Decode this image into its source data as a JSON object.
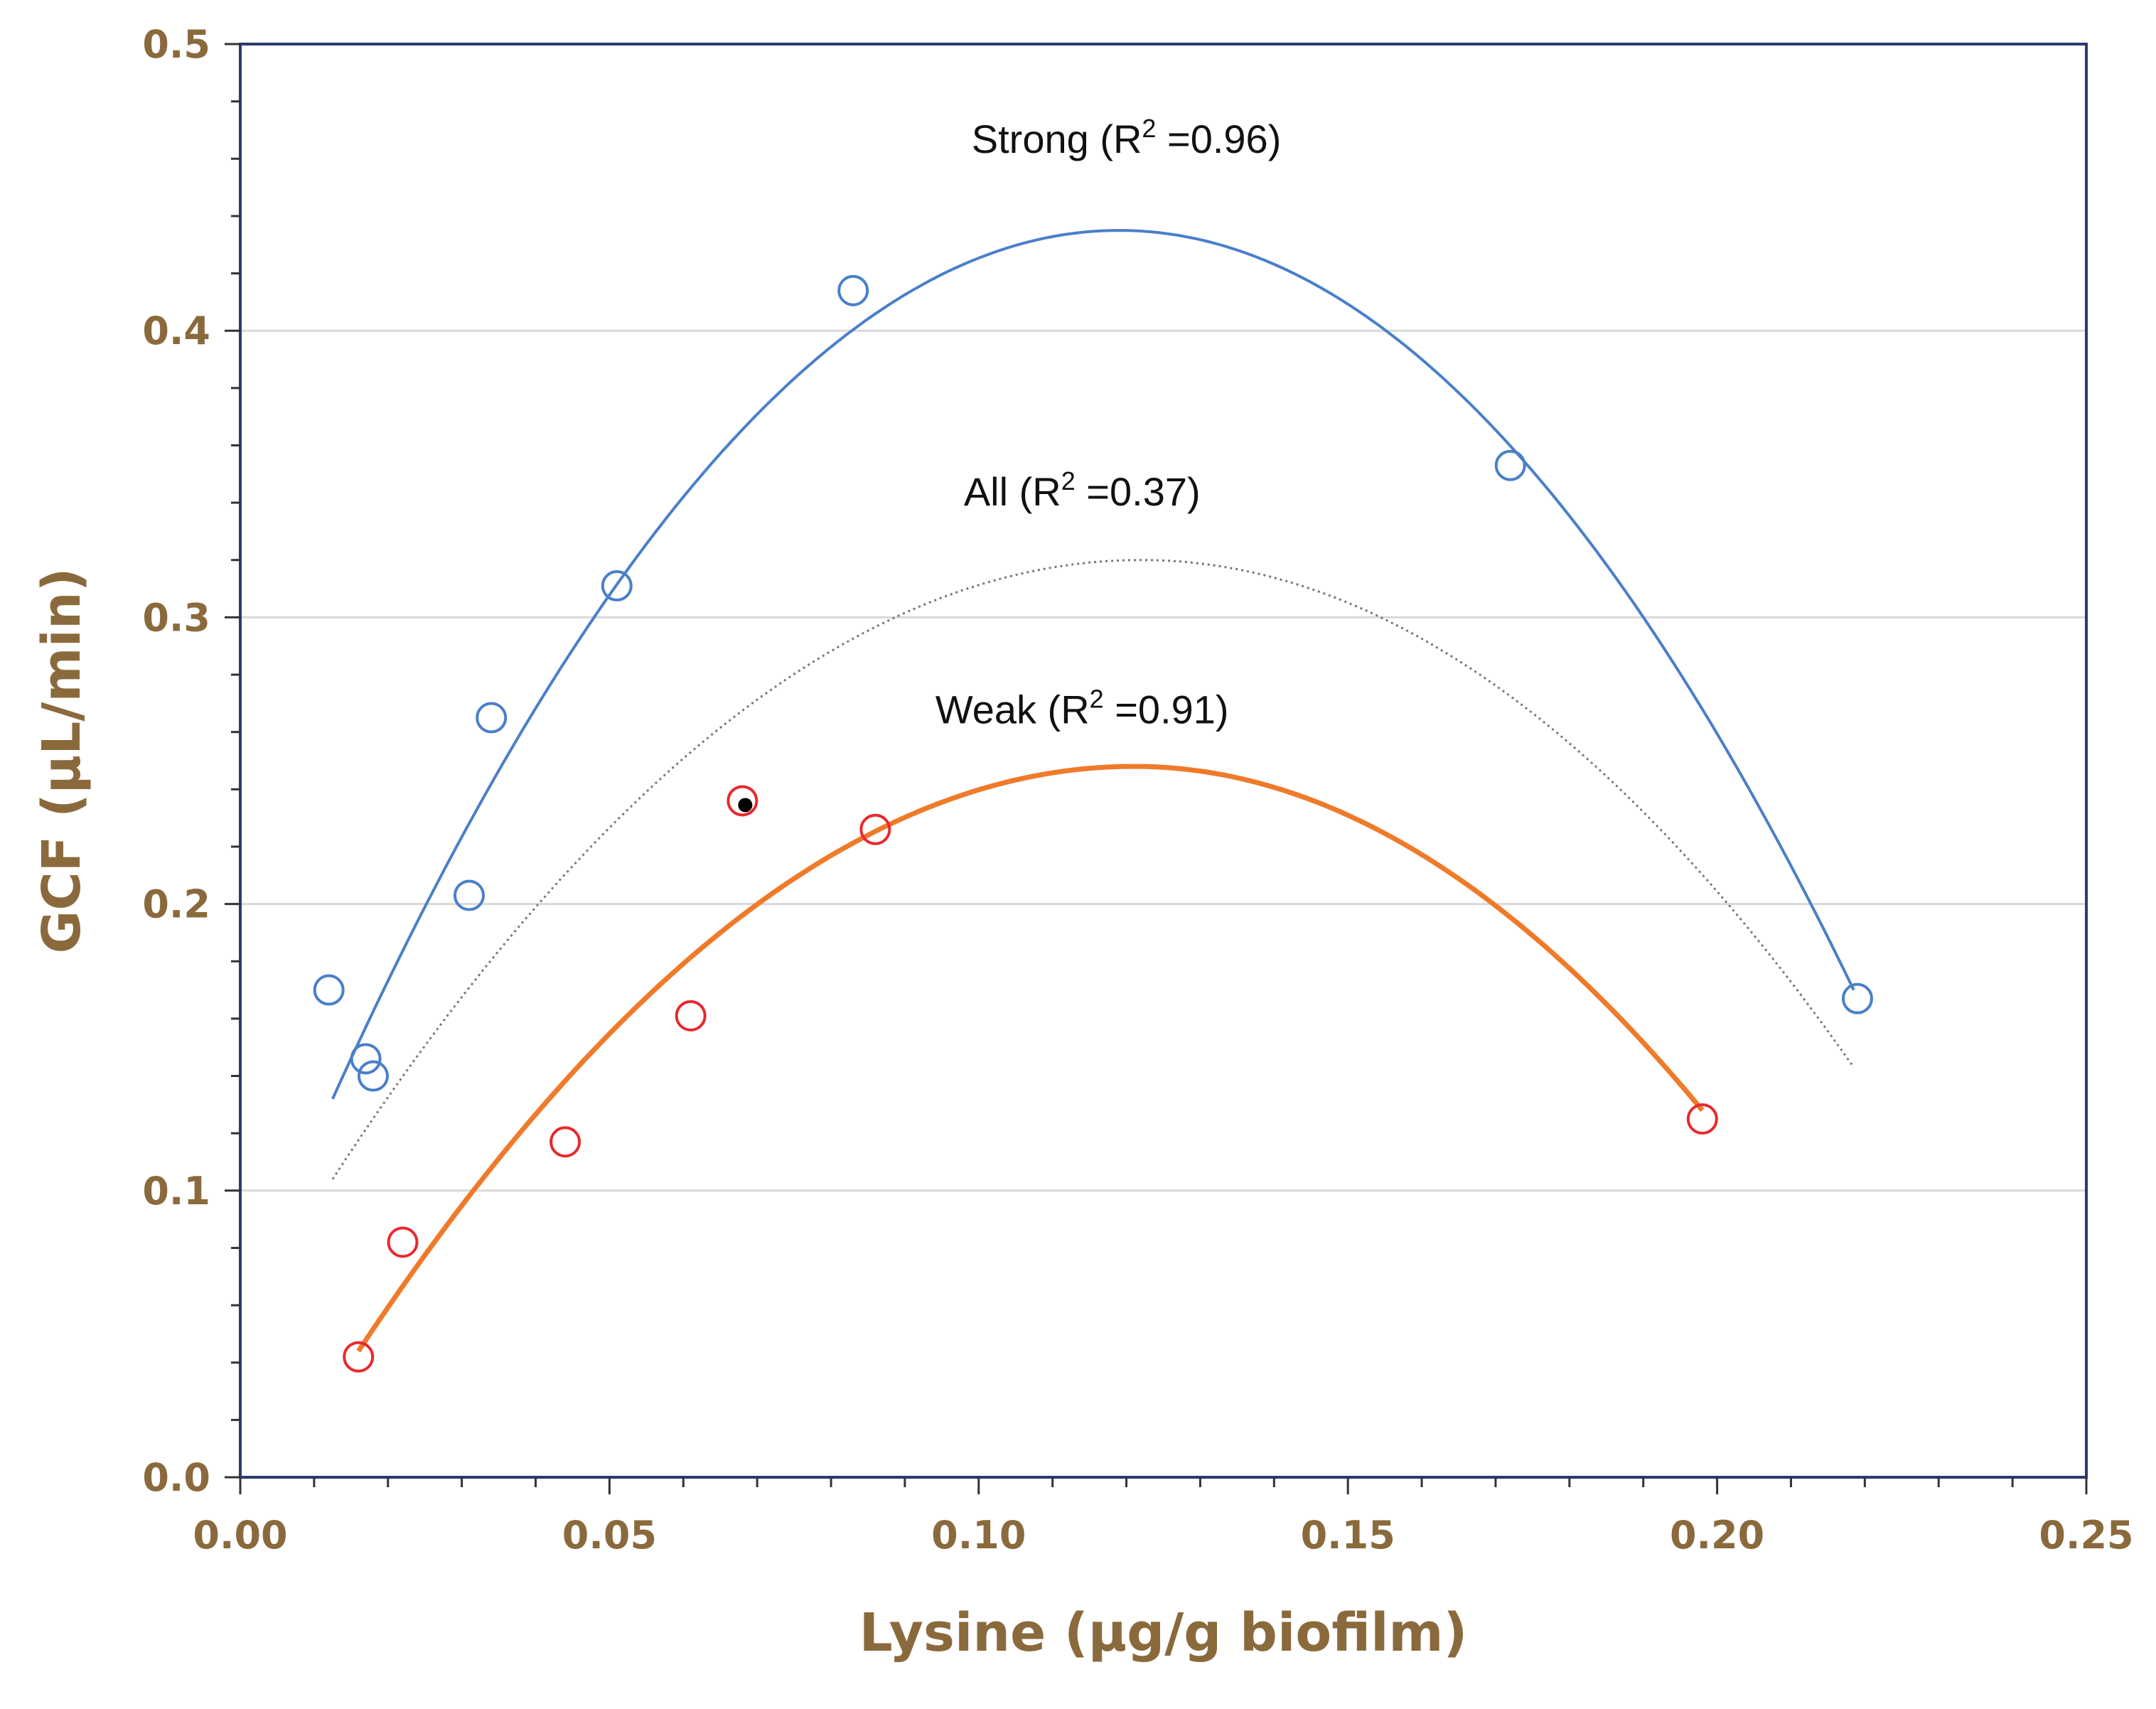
{
  "chart_data": {
    "type": "scatter",
    "title": "",
    "xlabel": "Lysine (µg/g biofilm)",
    "ylabel": "GCF (µL/min)",
    "xlim": [
      0.0,
      0.25
    ],
    "ylim": [
      0.0,
      0.5
    ],
    "x_ticks": [
      "0.00",
      "0.05",
      "0.10",
      "0.15",
      "0.20",
      "0.25"
    ],
    "y_ticks": [
      "0.0",
      "0.1",
      "0.2",
      "0.3",
      "0.4",
      "0.5"
    ],
    "grid": "horizontal",
    "series": [
      {
        "name": "Strong",
        "label_prefix": "Strong (R",
        "label_suffix": " =0.96)",
        "label_sup": "2",
        "color": "#4a7fc9",
        "marker": "open-circle",
        "points": [
          {
            "x": 0.012,
            "y": 0.17
          },
          {
            "x": 0.017,
            "y": 0.146
          },
          {
            "x": 0.018,
            "y": 0.14
          },
          {
            "x": 0.031,
            "y": 0.203
          },
          {
            "x": 0.034,
            "y": 0.265
          },
          {
            "x": 0.051,
            "y": 0.311
          },
          {
            "x": 0.083,
            "y": 0.414
          },
          {
            "x": 0.172,
            "y": 0.353
          },
          {
            "x": 0.219,
            "y": 0.167
          }
        ],
        "fit": {
          "kind": "quadratic",
          "vertex_x": 0.119,
          "vertex_y": 0.435,
          "x_start": 0.0125,
          "x_end": 0.2185,
          "end_y": 0.17,
          "start_y": 0.132
        },
        "label_anchor": {
          "x": 0.12,
          "y": 0.462
        }
      },
      {
        "name": "All",
        "label_prefix": "All (R",
        "label_suffix": " =0.37)",
        "label_sup": "2",
        "color": "#777777",
        "marker": "none",
        "points": [],
        "fit": {
          "kind": "quadratic",
          "vertex_x": 0.122,
          "vertex_y": 0.32,
          "x_start": 0.0125,
          "x_end": 0.2185,
          "end_y": 0.143,
          "start_y": 0.104
        },
        "label_anchor": {
          "x": 0.114,
          "y": 0.339
        }
      },
      {
        "name": "Weak",
        "label_prefix": "Weak (R",
        "label_suffix": " =0.91)",
        "label_sup": "2",
        "color": "#ef7a2a",
        "marker": "open-circle",
        "marker_color": "#e8292e",
        "points": [
          {
            "x": 0.016,
            "y": 0.042
          },
          {
            "x": 0.022,
            "y": 0.082
          },
          {
            "x": 0.044,
            "y": 0.117
          },
          {
            "x": 0.061,
            "y": 0.161
          },
          {
            "x": 0.068,
            "y": 0.236
          },
          {
            "x": 0.086,
            "y": 0.226
          },
          {
            "x": 0.198,
            "y": 0.125
          }
        ],
        "fit": {
          "kind": "quadratic",
          "vertex_x": 0.121,
          "vertex_y": 0.248,
          "x_start": 0.016,
          "x_end": 0.198,
          "end_y": 0.128,
          "start_y": 0.044
        },
        "label_anchor": {
          "x": 0.114,
          "y": 0.263
        }
      }
    ],
    "annotations": [
      {
        "type": "filled-dot",
        "x": 0.068,
        "y": 0.235,
        "color": "#000000"
      }
    ]
  }
}
